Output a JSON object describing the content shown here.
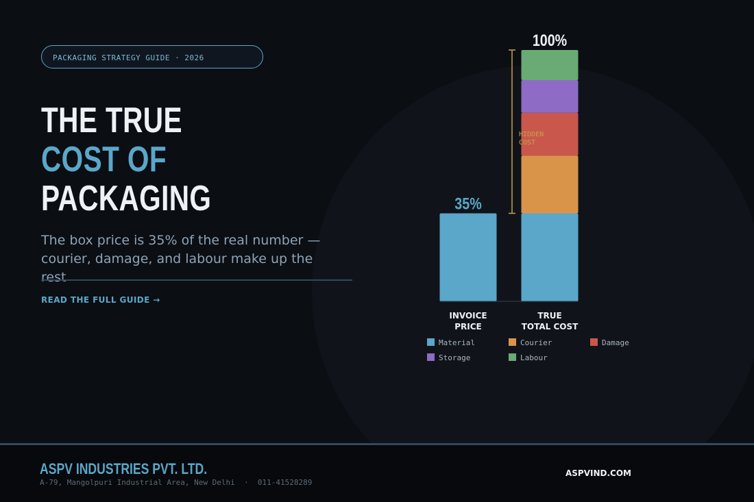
{
  "header": {
    "tag": "PACKAGING STRATEGY GUIDE · 2026",
    "title_lines": [
      "THE TRUE",
      "COST OF",
      "PACKAGING"
    ],
    "subtitle": "The box price is 35% of the real number — courier, damage, and labour make up the rest",
    "cta": "READ THE FULL GUIDE →"
  },
  "chart_data": {
    "type": "stacked_bar",
    "categories": [
      "INVOICE\nPRICE",
      "TRUE\nTOTAL COST"
    ],
    "series": [
      {
        "name": "Material",
        "color": "#5aa7c9",
        "values": [
          35,
          35
        ]
      },
      {
        "name": "Courier",
        "color": "#d9944a",
        "values": [
          null,
          23
        ]
      },
      {
        "name": "Damage",
        "color": "#c9574c",
        "values": [
          null,
          17
        ]
      },
      {
        "name": "Storage",
        "color": "#8e6bc4",
        "values": [
          null,
          13
        ]
      },
      {
        "name": "Labour",
        "color": "#6aaa74",
        "values": [
          null,
          12
        ]
      }
    ],
    "totals": [
      35,
      100
    ],
    "total_labels": [
      "35%",
      "100%"
    ],
    "annotation": "HIDDEN COST",
    "ylim": [
      0,
      100
    ]
  },
  "footer": {
    "company": "ASPV INDUSTRIES PVT. LTD.",
    "address": "A-79, Mangolpuri Industrial Area, New Delhi  ·  011-41528289",
    "website": "ASPVIND.COM"
  }
}
